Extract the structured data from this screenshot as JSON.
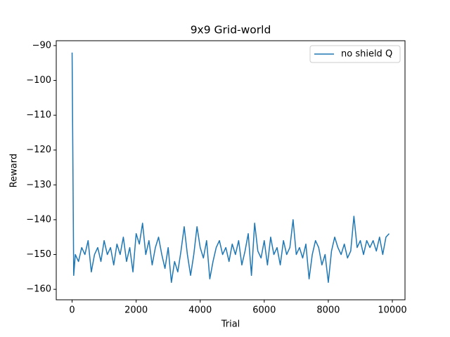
{
  "chart_data": {
    "type": "line",
    "title": "9x9 Grid-world",
    "x_label": "Trial",
    "y_label": "Reward",
    "x": [
      0,
      50,
      100,
      200,
      300,
      400,
      500,
      600,
      700,
      800,
      900,
      1000,
      1100,
      1200,
      1300,
      1400,
      1500,
      1600,
      1700,
      1800,
      1900,
      2000,
      2100,
      2200,
      2300,
      2400,
      2500,
      2600,
      2700,
      2800,
      2900,
      3000,
      3100,
      3200,
      3300,
      3400,
      3500,
      3600,
      3700,
      3800,
      3900,
      4000,
      4100,
      4200,
      4300,
      4400,
      4500,
      4600,
      4700,
      4800,
      4900,
      5000,
      5100,
      5200,
      5300,
      5400,
      5500,
      5600,
      5700,
      5800,
      5900,
      6000,
      6100,
      6200,
      6300,
      6400,
      6500,
      6600,
      6700,
      6800,
      6900,
      7000,
      7100,
      7200,
      7300,
      7400,
      7500,
      7600,
      7700,
      7800,
      7900,
      8000,
      8100,
      8200,
      8300,
      8400,
      8500,
      8600,
      8700,
      8800,
      8900,
      9000,
      9100,
      9200,
      9300,
      9400,
      9500,
      9600,
      9700,
      9800,
      9900
    ],
    "series": [
      {
        "name": "no shield Q",
        "color": "#1f77b4",
        "values": [
          -92,
          -156,
          -150,
          -152,
          -148,
          -150,
          -146,
          -155,
          -150,
          -148,
          -152,
          -146,
          -150,
          -148,
          -153,
          -147,
          -150,
          -145,
          -152,
          -148,
          -155,
          -144,
          -147,
          -141,
          -150,
          -146,
          -153,
          -148,
          -145,
          -150,
          -154,
          -148,
          -158,
          -152,
          -155,
          -149,
          -142,
          -150,
          -156,
          -150,
          -142,
          -148,
          -151,
          -146,
          -157,
          -152,
          -148,
          -146,
          -150,
          -148,
          -152,
          -147,
          -150,
          -146,
          -153,
          -149,
          -144,
          -156,
          -141,
          -149,
          -151,
          -146,
          -153,
          -145,
          -150,
          -148,
          -153,
          -146,
          -150,
          -148,
          -140,
          -150,
          -148,
          -151,
          -147,
          -157,
          -150,
          -146,
          -148,
          -153,
          -150,
          -158,
          -149,
          -145,
          -148,
          -150,
          -147,
          -151,
          -149,
          -139,
          -148,
          -146,
          -150,
          -146,
          -148,
          -146,
          -149,
          -145,
          -150,
          -145,
          -144
        ]
      }
    ],
    "xlim": [
      -495,
      10395
    ],
    "ylim": [
      -163,
      -88.6
    ],
    "xticks": [
      0,
      2000,
      4000,
      6000,
      8000,
      10000
    ],
    "yticks": [
      {
        "value": -160,
        "label": "−160"
      },
      {
        "value": -150,
        "label": "−150"
      },
      {
        "value": -140,
        "label": "−140"
      },
      {
        "value": -130,
        "label": "−130"
      },
      {
        "value": -120,
        "label": "−120"
      },
      {
        "value": -110,
        "label": "−110"
      },
      {
        "value": -100,
        "label": "−100"
      },
      {
        "value": -90,
        "label": "−90"
      }
    ],
    "legend": "upper right",
    "grid": false
  }
}
